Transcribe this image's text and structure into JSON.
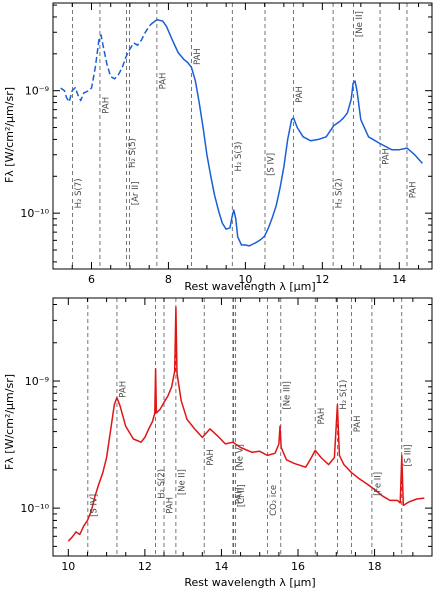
{
  "chart_data": [
    {
      "type": "line",
      "xlabel": "Rest wavelength λ [μm]",
      "ylabel": "Fλ [W/cm²/μm/sr]",
      "xlim": [
        5.0,
        14.85
      ],
      "ylim": [
        3.5e-11,
        5.2e-09
      ],
      "yscale": "log",
      "xticks": [
        6,
        8,
        10,
        12,
        14
      ],
      "yticks": [
        {
          "value": 1e-10,
          "label": "10⁻¹⁰"
        },
        {
          "value": 1e-09,
          "label": "10⁻⁹"
        }
      ],
      "color": "#1a5fd6",
      "series": [
        {
          "style": "dashed",
          "points": [
            [
              5.2,
              1.05e-09
            ],
            [
              5.3,
              1e-09
            ],
            [
              5.35,
              8.8e-10
            ],
            [
              5.42,
              8.1e-10
            ],
            [
              5.5,
              1e-09
            ],
            [
              5.58,
              1.06e-09
            ],
            [
              5.65,
              9.2e-10
            ],
            [
              5.72,
              8.3e-10
            ],
            [
              5.8,
              9.6e-10
            ],
            [
              5.9,
              9.9e-10
            ],
            [
              6.0,
              1.05e-09
            ],
            [
              6.1,
              1.55e-09
            ],
            [
              6.2,
              2.7e-09
            ],
            [
              6.25,
              2.85e-09
            ],
            [
              6.3,
              2.35e-09
            ],
            [
              6.4,
              1.65e-09
            ],
            [
              6.5,
              1.3e-09
            ],
            [
              6.6,
              1.25e-09
            ],
            [
              6.7,
              1.35e-09
            ],
            [
              6.8,
              1.55e-09
            ],
            [
              6.9,
              1.9e-09
            ],
            [
              7.0,
              2.2e-09
            ],
            [
              7.1,
              2.45e-09
            ],
            [
              7.2,
              2.35e-09
            ],
            [
              7.3,
              2.6e-09
            ],
            [
              7.4,
              3e-09
            ],
            [
              7.5,
              3.35e-09
            ],
            [
              7.55,
              3.5e-09
            ]
          ]
        },
        {
          "style": "solid",
          "points": [
            [
              7.55,
              3.5e-09
            ],
            [
              7.7,
              3.8e-09
            ],
            [
              7.85,
              3.7e-09
            ],
            [
              7.95,
              3.35e-09
            ],
            [
              8.1,
              2.6e-09
            ],
            [
              8.25,
              2.05e-09
            ],
            [
              8.4,
              1.8e-09
            ],
            [
              8.5,
              1.7e-09
            ],
            [
              8.6,
              1.55e-09
            ],
            [
              8.7,
              1.2e-09
            ],
            [
              8.8,
              8e-10
            ],
            [
              8.9,
              5e-10
            ],
            [
              9.0,
              3e-10
            ],
            [
              9.1,
              2e-10
            ],
            [
              9.2,
              1.4e-10
            ],
            [
              9.3,
              1.05e-10
            ],
            [
              9.4,
              8.3e-11
            ],
            [
              9.5,
              7.4e-11
            ],
            [
              9.6,
              7.6e-11
            ],
            [
              9.65,
              9.2e-11
            ],
            [
              9.7,
              1.06e-10
            ],
            [
              9.75,
              9e-11
            ],
            [
              9.8,
              6.4e-11
            ],
            [
              9.9,
              5.5e-11
            ],
            [
              10.0,
              5.5e-11
            ],
            [
              10.1,
              5.4e-11
            ],
            [
              10.2,
              5.6e-11
            ],
            [
              10.3,
              5.8e-11
            ],
            [
              10.4,
              6.1e-11
            ],
            [
              10.5,
              6.5e-11
            ],
            [
              10.6,
              7.6e-11
            ],
            [
              10.7,
              9.2e-11
            ],
            [
              10.8,
              1.15e-10
            ],
            [
              10.9,
              1.6e-10
            ],
            [
              11.0,
              2.4e-10
            ],
            [
              11.1,
              4e-10
            ],
            [
              11.2,
              5.8e-10
            ],
            [
              11.25,
              6e-10
            ],
            [
              11.35,
              5e-10
            ],
            [
              11.5,
              4.2e-10
            ],
            [
              11.7,
              3.9e-10
            ],
            [
              11.9,
              4e-10
            ],
            [
              12.1,
              4.2e-10
            ],
            [
              12.3,
              5.2e-10
            ],
            [
              12.45,
              5.6e-10
            ],
            [
              12.55,
              6e-10
            ],
            [
              12.65,
              6.6e-10
            ],
            [
              12.75,
              8.5e-10
            ],
            [
              12.8,
              1.15e-09
            ],
            [
              12.85,
              1.2e-09
            ],
            [
              12.9,
              1e-09
            ],
            [
              13.0,
              5.8e-10
            ],
            [
              13.2,
              4.2e-10
            ],
            [
              13.5,
              3.7e-10
            ],
            [
              13.8,
              3.3e-10
            ],
            [
              14.0,
              3.3e-10
            ],
            [
              14.2,
              3.4e-10
            ],
            [
              14.4,
              3e-10
            ],
            [
              14.6,
              2.55e-10
            ]
          ]
        }
      ],
      "lines": [
        {
          "x": 5.51,
          "label": "H₂ S(7)",
          "y": 1.45e-10,
          "anchor": "start"
        },
        {
          "x": 6.22,
          "label": "PAH",
          "y": 7.6e-10,
          "anchor": "start"
        },
        {
          "x": 6.91,
          "label": "H₂ S(5)",
          "y": 3.1e-10,
          "anchor": "start"
        },
        {
          "x": 6.99,
          "label": "[Ar II]",
          "y": 1.45e-10,
          "anchor": "start"
        },
        {
          "x": 7.7,
          "label": "PAH",
          "y": 1.2e-09,
          "anchor": "start"
        },
        {
          "x": 8.6,
          "label": "PAH",
          "y": 1.9e-09,
          "anchor": "start"
        },
        {
          "x": 9.66,
          "label": "H₂ S(3)",
          "y": 2.9e-10,
          "anchor": "start"
        },
        {
          "x": 10.51,
          "label": "[S IV]",
          "y": 2.5e-10,
          "anchor": "start"
        },
        {
          "x": 11.25,
          "label": "PAH",
          "y": 9.3e-10,
          "anchor": "start"
        },
        {
          "x": 12.28,
          "label": "H₂ S(2)",
          "y": 1.45e-10,
          "anchor": "start"
        },
        {
          "x": 12.81,
          "label": "[Ne II]",
          "y": 3.5e-09,
          "anchor": "start"
        },
        {
          "x": 13.5,
          "label": "PAH",
          "y": 2.9e-10,
          "anchor": "start"
        },
        {
          "x": 14.2,
          "label": "PAH",
          "y": 1.55e-10,
          "anchor": "start"
        }
      ]
    },
    {
      "type": "line",
      "xlabel": "Rest wavelength λ [μm]",
      "ylabel": "Fλ [W/cm²/μm/sr]",
      "xlim": [
        9.6,
        19.5
      ],
      "ylim": [
        4.2e-11,
        4.5e-09
      ],
      "yscale": "log",
      "xticks": [
        10,
        12,
        14,
        16,
        18
      ],
      "yticks": [
        {
          "value": 1e-10,
          "label": "10⁻¹⁰"
        },
        {
          "value": 1e-09,
          "label": "10⁻⁹"
        }
      ],
      "color": "#e01515",
      "series": [
        {
          "style": "solid",
          "points": [
            [
              10.0,
              5.5e-11
            ],
            [
              10.1,
              5.9e-11
            ],
            [
              10.2,
              6.5e-11
            ],
            [
              10.3,
              6.2e-11
            ],
            [
              10.4,
              7.2e-11
            ],
            [
              10.5,
              8e-11
            ],
            [
              10.6,
              9.5e-11
            ],
            [
              10.7,
              1.25e-10
            ],
            [
              10.8,
              1.55e-10
            ],
            [
              10.9,
              1.9e-10
            ],
            [
              11.0,
              2.5e-10
            ],
            [
              11.1,
              4e-10
            ],
            [
              11.2,
              6.5e-10
            ],
            [
              11.27,
              7.4e-10
            ],
            [
              11.35,
              6.4e-10
            ],
            [
              11.5,
              4.4e-10
            ],
            [
              11.7,
              3.5e-10
            ],
            [
              11.9,
              3.3e-10
            ],
            [
              12.0,
              3.6e-10
            ],
            [
              12.1,
              4.2e-10
            ],
            [
              12.2,
              4.8e-10
            ],
            [
              12.26,
              5.6e-10
            ],
            [
              12.28,
              1.25e-09
            ],
            [
              12.3,
              5.6e-10
            ],
            [
              12.4,
              6e-10
            ],
            [
              12.5,
              6.8e-10
            ],
            [
              12.6,
              7.6e-10
            ],
            [
              12.7,
              9e-10
            ],
            [
              12.78,
              1.2e-09
            ],
            [
              12.81,
              3.8e-09
            ],
            [
              12.84,
              1.15e-09
            ],
            [
              12.95,
              7e-10
            ],
            [
              13.1,
              5e-10
            ],
            [
              13.3,
              4.2e-10
            ],
            [
              13.5,
              3.6e-10
            ],
            [
              13.7,
              4.2e-10
            ],
            [
              13.9,
              3.7e-10
            ],
            [
              14.1,
              3.2e-10
            ],
            [
              14.3,
              3.3e-10
            ],
            [
              14.5,
              3e-10
            ],
            [
              14.8,
              2.75e-10
            ],
            [
              15.0,
              2.8e-10
            ],
            [
              15.2,
              2.6e-10
            ],
            [
              15.4,
              2.7e-10
            ],
            [
              15.5,
              3.2e-10
            ],
            [
              15.53,
              4.4e-10
            ],
            [
              15.56,
              3e-10
            ],
            [
              15.7,
              2.4e-10
            ],
            [
              15.9,
              2.25e-10
            ],
            [
              16.2,
              2.1e-10
            ],
            [
              16.35,
              2.5e-10
            ],
            [
              16.45,
              2.85e-10
            ],
            [
              16.6,
              2.5e-10
            ],
            [
              16.8,
              2.2e-10
            ],
            [
              16.95,
              2.5e-10
            ],
            [
              17.03,
              6.5e-10
            ],
            [
              17.08,
              2.6e-10
            ],
            [
              17.2,
              2.2e-10
            ],
            [
              17.4,
              1.9e-10
            ],
            [
              17.6,
              1.7e-10
            ],
            [
              17.8,
              1.55e-10
            ],
            [
              18.0,
              1.4e-10
            ],
            [
              18.2,
              1.25e-10
            ],
            [
              18.4,
              1.15e-10
            ],
            [
              18.6,
              1.15e-10
            ],
            [
              18.67,
              1.1e-10
            ],
            [
              18.71,
              2.6e-10
            ],
            [
              18.75,
              1.05e-10
            ],
            [
              18.9,
              1.12e-10
            ],
            [
              19.1,
              1.18e-10
            ],
            [
              19.3,
              1.2e-10
            ]
          ]
        }
      ],
      "lines": [
        {
          "x": 10.51,
          "label": "[S IV]",
          "y": 1.05e-10,
          "anchor": "start"
        },
        {
          "x": 11.27,
          "label": "PAH",
          "y": 8.6e-10,
          "anchor": "start"
        },
        {
          "x": 12.28,
          "label": "H₂ S(2)",
          "y": 1.55e-10,
          "anchor": "start"
        },
        {
          "x": 12.5,
          "label": "PAH",
          "y": 1.05e-10,
          "anchor": "start"
        },
        {
          "x": 12.81,
          "label": "[Ne II]",
          "y": 1.6e-10,
          "anchor": "start"
        },
        {
          "x": 13.55,
          "label": "PAH",
          "y": 2.5e-10,
          "anchor": "start"
        },
        {
          "x": 14.3,
          "label": "PAH",
          "y": 1.25e-10,
          "anchor": "start"
        },
        {
          "x": 14.37,
          "label": "[Cl II]",
          "y": 1.25e-10,
          "anchor": "start"
        },
        {
          "x": 14.32,
          "label": "[Ne V]",
          "y": 2.5e-10,
          "anchor": "start"
        },
        {
          "x": 15.2,
          "label": "CO₂ ice",
          "y": 1.15e-10,
          "anchor": "start"
        },
        {
          "x": 15.55,
          "label": "[Ne III]",
          "y": 7.7e-10,
          "anchor": "start"
        },
        {
          "x": 16.45,
          "label": "PAH",
          "y": 5.3e-10,
          "anchor": "start"
        },
        {
          "x": 17.03,
          "label": "H₂ S(1)",
          "y": 7.8e-10,
          "anchor": "start"
        },
        {
          "x": 17.4,
          "label": "PAH",
          "y": 4.6e-10,
          "anchor": "start"
        },
        {
          "x": 17.93,
          "label": "[Fe II]",
          "y": 1.55e-10,
          "anchor": "start"
        },
        {
          "x": 18.71,
          "label": "[S III]",
          "y": 2.6e-10,
          "anchor": "start"
        }
      ]
    }
  ]
}
